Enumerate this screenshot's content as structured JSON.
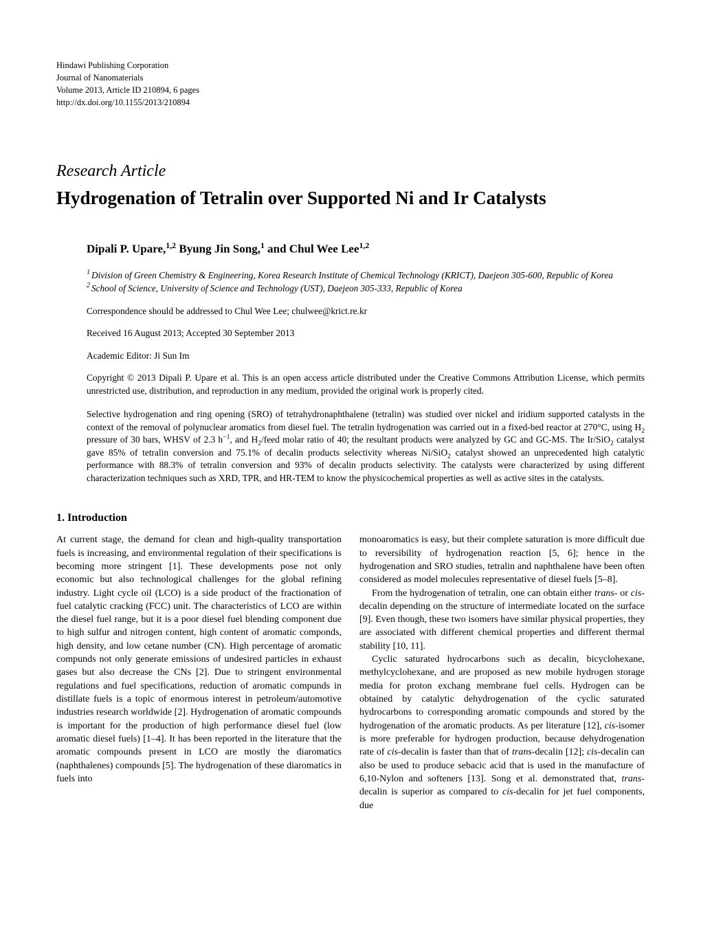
{
  "publisher": {
    "line1": "Hindawi Publishing Corporation",
    "line2": "Journal of Nanomaterials",
    "line3": "Volume 2013, Article ID 210894, 6 pages",
    "line4": "http://dx.doi.org/10.1155/2013/210894"
  },
  "article_type": "Research Article",
  "title": "Hydrogenation of Tetralin over Supported Ni and Ir Catalysts",
  "authors_html": "Dipali P. Upare,<span class=\"sup\">1,2</span> Byung Jin Song,<span class=\"sup\">1</span> and Chul Wee Lee<span class=\"sup\">1,2</span>",
  "affiliations": [
    {
      "num": "1",
      "text": "Division of Green Chemistry & Engineering, Korea Research Institute of Chemical Technology (KRICT), Daejeon 305-600, Republic of Korea"
    },
    {
      "num": "2",
      "text": "School of Science, University of Science and Technology (UST), Daejeon 305-333, Republic of Korea"
    }
  ],
  "correspondence": "Correspondence should be addressed to Chul Wee Lee; chulwee@krict.re.kr",
  "dates": "Received 16 August 2013; Accepted 30 September 2013",
  "editor": "Academic Editor: Ji Sun Im",
  "copyright": "Copyright © 2013 Dipali P. Upare et al. This is an open access article distributed under the Creative Commons Attribution License, which permits unrestricted use, distribution, and reproduction in any medium, provided the original work is properly cited.",
  "abstract_html": "Selective hydrogenation and ring opening (SRO) of tetrahydronaphthalene (tetralin) was studied over nickel and iridium supported catalysts in the context of the removal of polynuclear aromatics from diesel fuel. The tetralin hydrogenation was carried out in a fixed-bed reactor at 270°C, using H<span class=\"sub\">2</span> pressure of 30 bars, WHSV of 2.3 h<span class=\"supnum\">−1</span>, and H<span class=\"sub\">2</span>/feed molar ratio of 40; the resultant products were analyzed by GC and GC-MS. The Ir/SiO<span class=\"sub\">2</span> catalyst gave 85% of tetralin conversion and 75.1% of decalin products selectivity whereas Ni/SiO<span class=\"sub\">2</span> catalyst showed an unprecedented high catalytic performance with 88.3% of tetralin conversion and 93% of decalin products selectivity. The catalysts were characterized by using different characterization techniques such as XRD, TPR, and HR-TEM to know the physicochemical properties as well as active sites in the catalysts.",
  "section_heading": "1. Introduction",
  "col_left_html": "<p>At current stage, the demand for clean and high-quality transportation fuels is increasing, and environmental regulation of their specifications is becoming more stringent [1]. These developments pose not only economic but also technological challenges for the global refining industry. Light cycle oil (LCO) is a side product of the fractionation of fuel catalytic cracking (FCC) unit. The characteristics of LCO are within the diesel fuel range, but it is a poor diesel fuel blending component due to high sulfur and nitrogen content, high content of aromatic componds, high density, and low cetane number (CN). High percentage of aromatic compunds not only generate emissions of undesired particles in exhaust gases but also decrease the CNs [2]. Due to stringent environmental regulations and fuel specifications, reduction of aromatic compunds in distillate fuels is a topic of enormous interest in petroleum/automotive industries research worldwide [2]. Hydrogenation of aromatic compounds is important for the production of high performance diesel fuel (low aromatic diesel fuels) [1–4]. It has been reported in the literature that the aromatic compounds present in LCO are mostly the diaromatics (naphthalenes) compounds [5]. The hydrogenation of these diaromatics in fuels into</p>",
  "col_right_html": "<p>monoaromatics is easy, but their complete saturation is more difficult due to reversibility of hydrogenation reaction [5, 6]; hence in the hydrogenation and SRO studies, tetralin and naphthalene have been often considered as model molecules representative of diesel fuels [5–8].</p><p class=\"indent\">From the hydrogenation of tetralin, one can obtain either <span class=\"it\">trans-</span> or <span class=\"it\">cis-</span>decalin depending on the structure of intermediate located on the surface [9]. Even though, these two isomers have similar physical properties, they are associated with different chemical properties and different thermal stability [10, 11].</p><p class=\"indent\">Cyclic saturated hydrocarbons such as decalin, bicyclohexane, methylcyclohexane, and are proposed as new mobile hydrogen storage media for proton exchang membrane fuel cells. Hydrogen can be obtained by catalytic dehydrogenation of the cyclic saturated hydrocarbons to corresponding aromatic compounds and stored by the hydrogenation of the aromatic products. As per literature [12], <span class=\"it\">cis-</span>isomer is more preferable for hydrogen production, because dehydrogenation rate of <span class=\"it\">cis-</span>decalin is faster than that of <span class=\"it\">trans-</span>decalin [12]; <span class=\"it\">cis-</span>decalin can also be used to produce sebacic acid that is used in the manufacture of 6,10-Nylon and softeners [13]. Song et al. demonstrated that, <span class=\"it\">trans-</span>decalin is superior as compared to <span class=\"it\">cis-</span>decalin for jet fuel components, due</p>"
}
